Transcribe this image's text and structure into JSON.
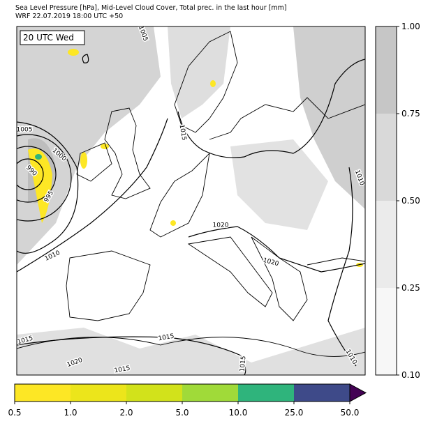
{
  "header": {
    "title": "Sea Level Pressure [hPa], Mid-Level Cloud Cover, Total prec. in the last hour [mm]",
    "subtitle": "WRF 22.07.2019 18:00 UTC +50"
  },
  "map": {
    "time_label": "20 UTC Wed",
    "isobar_labels": [
      "1005",
      "1015",
      "1005",
      "1000",
      "990",
      "995",
      "1010",
      "1020",
      "1020",
      "1010",
      "1015",
      "1015",
      "1020",
      "1015",
      "1015",
      "1010"
    ]
  },
  "cloud_colorbar": {
    "ticks": [
      "0.10",
      "0.25",
      "0.50",
      "0.75",
      "1.00"
    ],
    "colors": [
      "#f7f7f7",
      "#ebebeb",
      "#d9d9d9",
      "#c6c6c6"
    ]
  },
  "precip_colorbar": {
    "ticks": [
      "0.5",
      "1.0",
      "2.0",
      "5.0",
      "10.0",
      "25.0",
      "50.0"
    ],
    "colors": [
      "#fde725",
      "#ece51b",
      "#d2e21b",
      "#a0da39",
      "#2fb47c",
      "#3e4a89"
    ],
    "extend_color": "#440154"
  }
}
